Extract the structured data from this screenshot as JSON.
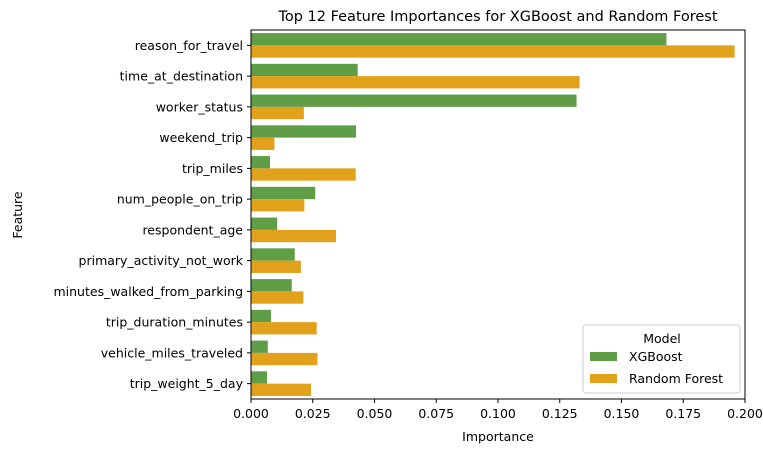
{
  "chart_data": {
    "type": "bar",
    "orientation": "horizontal",
    "title": "Top 12 Feature Importances for XGBoost and Random Forest",
    "xlabel": "Importance",
    "ylabel": "Feature",
    "xlim": [
      0,
      0.2
    ],
    "xticks": [
      "0.000",
      "0.025",
      "0.050",
      "0.075",
      "0.100",
      "0.125",
      "0.150",
      "0.175",
      "0.200"
    ],
    "grid": false,
    "categories": [
      "reason_for_travel",
      "time_at_destination",
      "worker_status",
      "weekend_trip",
      "trip_miles",
      "num_people_on_trip",
      "respondent_age",
      "primary_activity_not_work",
      "minutes_walked_from_parking",
      "trip_duration_minutes",
      "vehicle_miles_traveled",
      "trip_weight_5_day"
    ],
    "series": [
      {
        "name": "XGBoost",
        "color": "#5f9e46",
        "values": [
          0.1682,
          0.0432,
          0.1318,
          0.0425,
          0.0077,
          0.026,
          0.0106,
          0.0177,
          0.0165,
          0.0081,
          0.0068,
          0.0065
        ]
      },
      {
        "name": "Random Forest",
        "color": "#e1a11a",
        "values": [
          0.1958,
          0.133,
          0.0214,
          0.0095,
          0.0424,
          0.0216,
          0.0344,
          0.0202,
          0.0212,
          0.0266,
          0.0269,
          0.0243
        ]
      }
    ],
    "legend": {
      "title": "Model",
      "placement": "lower-right"
    }
  }
}
